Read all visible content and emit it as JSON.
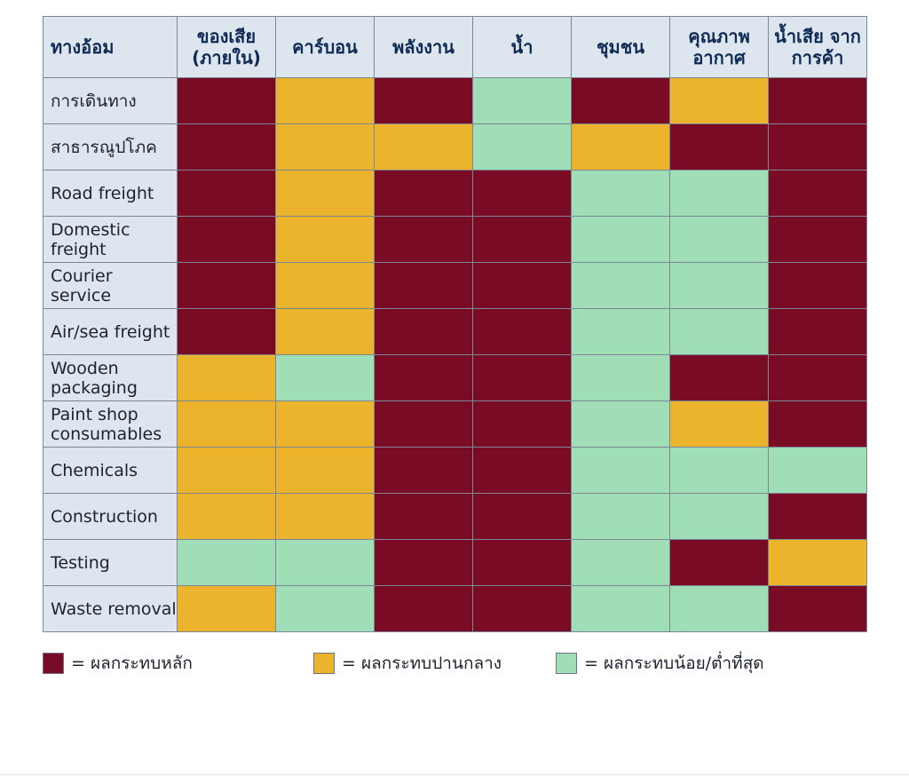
{
  "chart_data": {
    "type": "table",
    "corner_label": "ทางอ้อม",
    "columns": [
      "ของเสีย (ภายใน)",
      "คาร์บอน",
      "พลังงาน",
      "น้ำ",
      "ชุมชน",
      "คุณภาพ อากาศ",
      "น้ำเสีย จากการค้า"
    ],
    "rows": [
      {
        "label": "การเดินทาง",
        "levels": [
          "high",
          "medium",
          "high",
          "low",
          "high",
          "medium",
          "high"
        ]
      },
      {
        "label": "สาธารณูปโภค",
        "levels": [
          "high",
          "medium",
          "medium",
          "low",
          "medium",
          "high",
          "high"
        ]
      },
      {
        "label": "Road freight",
        "levels": [
          "high",
          "medium",
          "high",
          "high",
          "low",
          "low",
          "high"
        ]
      },
      {
        "label": "Domestic freight",
        "levels": [
          "high",
          "medium",
          "high",
          "high",
          "low",
          "low",
          "high"
        ]
      },
      {
        "label": "Courier service",
        "levels": [
          "high",
          "medium",
          "high",
          "high",
          "low",
          "low",
          "high"
        ]
      },
      {
        "label": "Air/sea freight",
        "levels": [
          "high",
          "medium",
          "high",
          "high",
          "low",
          "low",
          "high"
        ]
      },
      {
        "label": "Wooden packaging",
        "levels": [
          "medium",
          "low",
          "high",
          "high",
          "low",
          "high",
          "high"
        ]
      },
      {
        "label": "Paint shop consumables",
        "levels": [
          "medium",
          "medium",
          "high",
          "high",
          "low",
          "medium",
          "high"
        ]
      },
      {
        "label": "Chemicals",
        "levels": [
          "medium",
          "medium",
          "high",
          "high",
          "low",
          "low",
          "low"
        ]
      },
      {
        "label": "Construction",
        "levels": [
          "medium",
          "medium",
          "high",
          "high",
          "low",
          "low",
          "high"
        ]
      },
      {
        "label": "Testing",
        "levels": [
          "low",
          "low",
          "high",
          "high",
          "low",
          "high",
          "medium"
        ]
      },
      {
        "label": "Waste removal",
        "levels": [
          "medium",
          "low",
          "high",
          "high",
          "low",
          "low",
          "high"
        ]
      }
    ],
    "legend": [
      {
        "level": "high",
        "label": "= ผลกระทบหลัก"
      },
      {
        "level": "medium",
        "label": "= ผลกระทบปานกลาง"
      },
      {
        "level": "low",
        "label": "= ผลกระทบน้อย/ต่ำที่สุด"
      }
    ],
    "colors": {
      "high": "#7a0b24",
      "medium": "#ecb42d",
      "low": "#9fdeb6"
    }
  }
}
